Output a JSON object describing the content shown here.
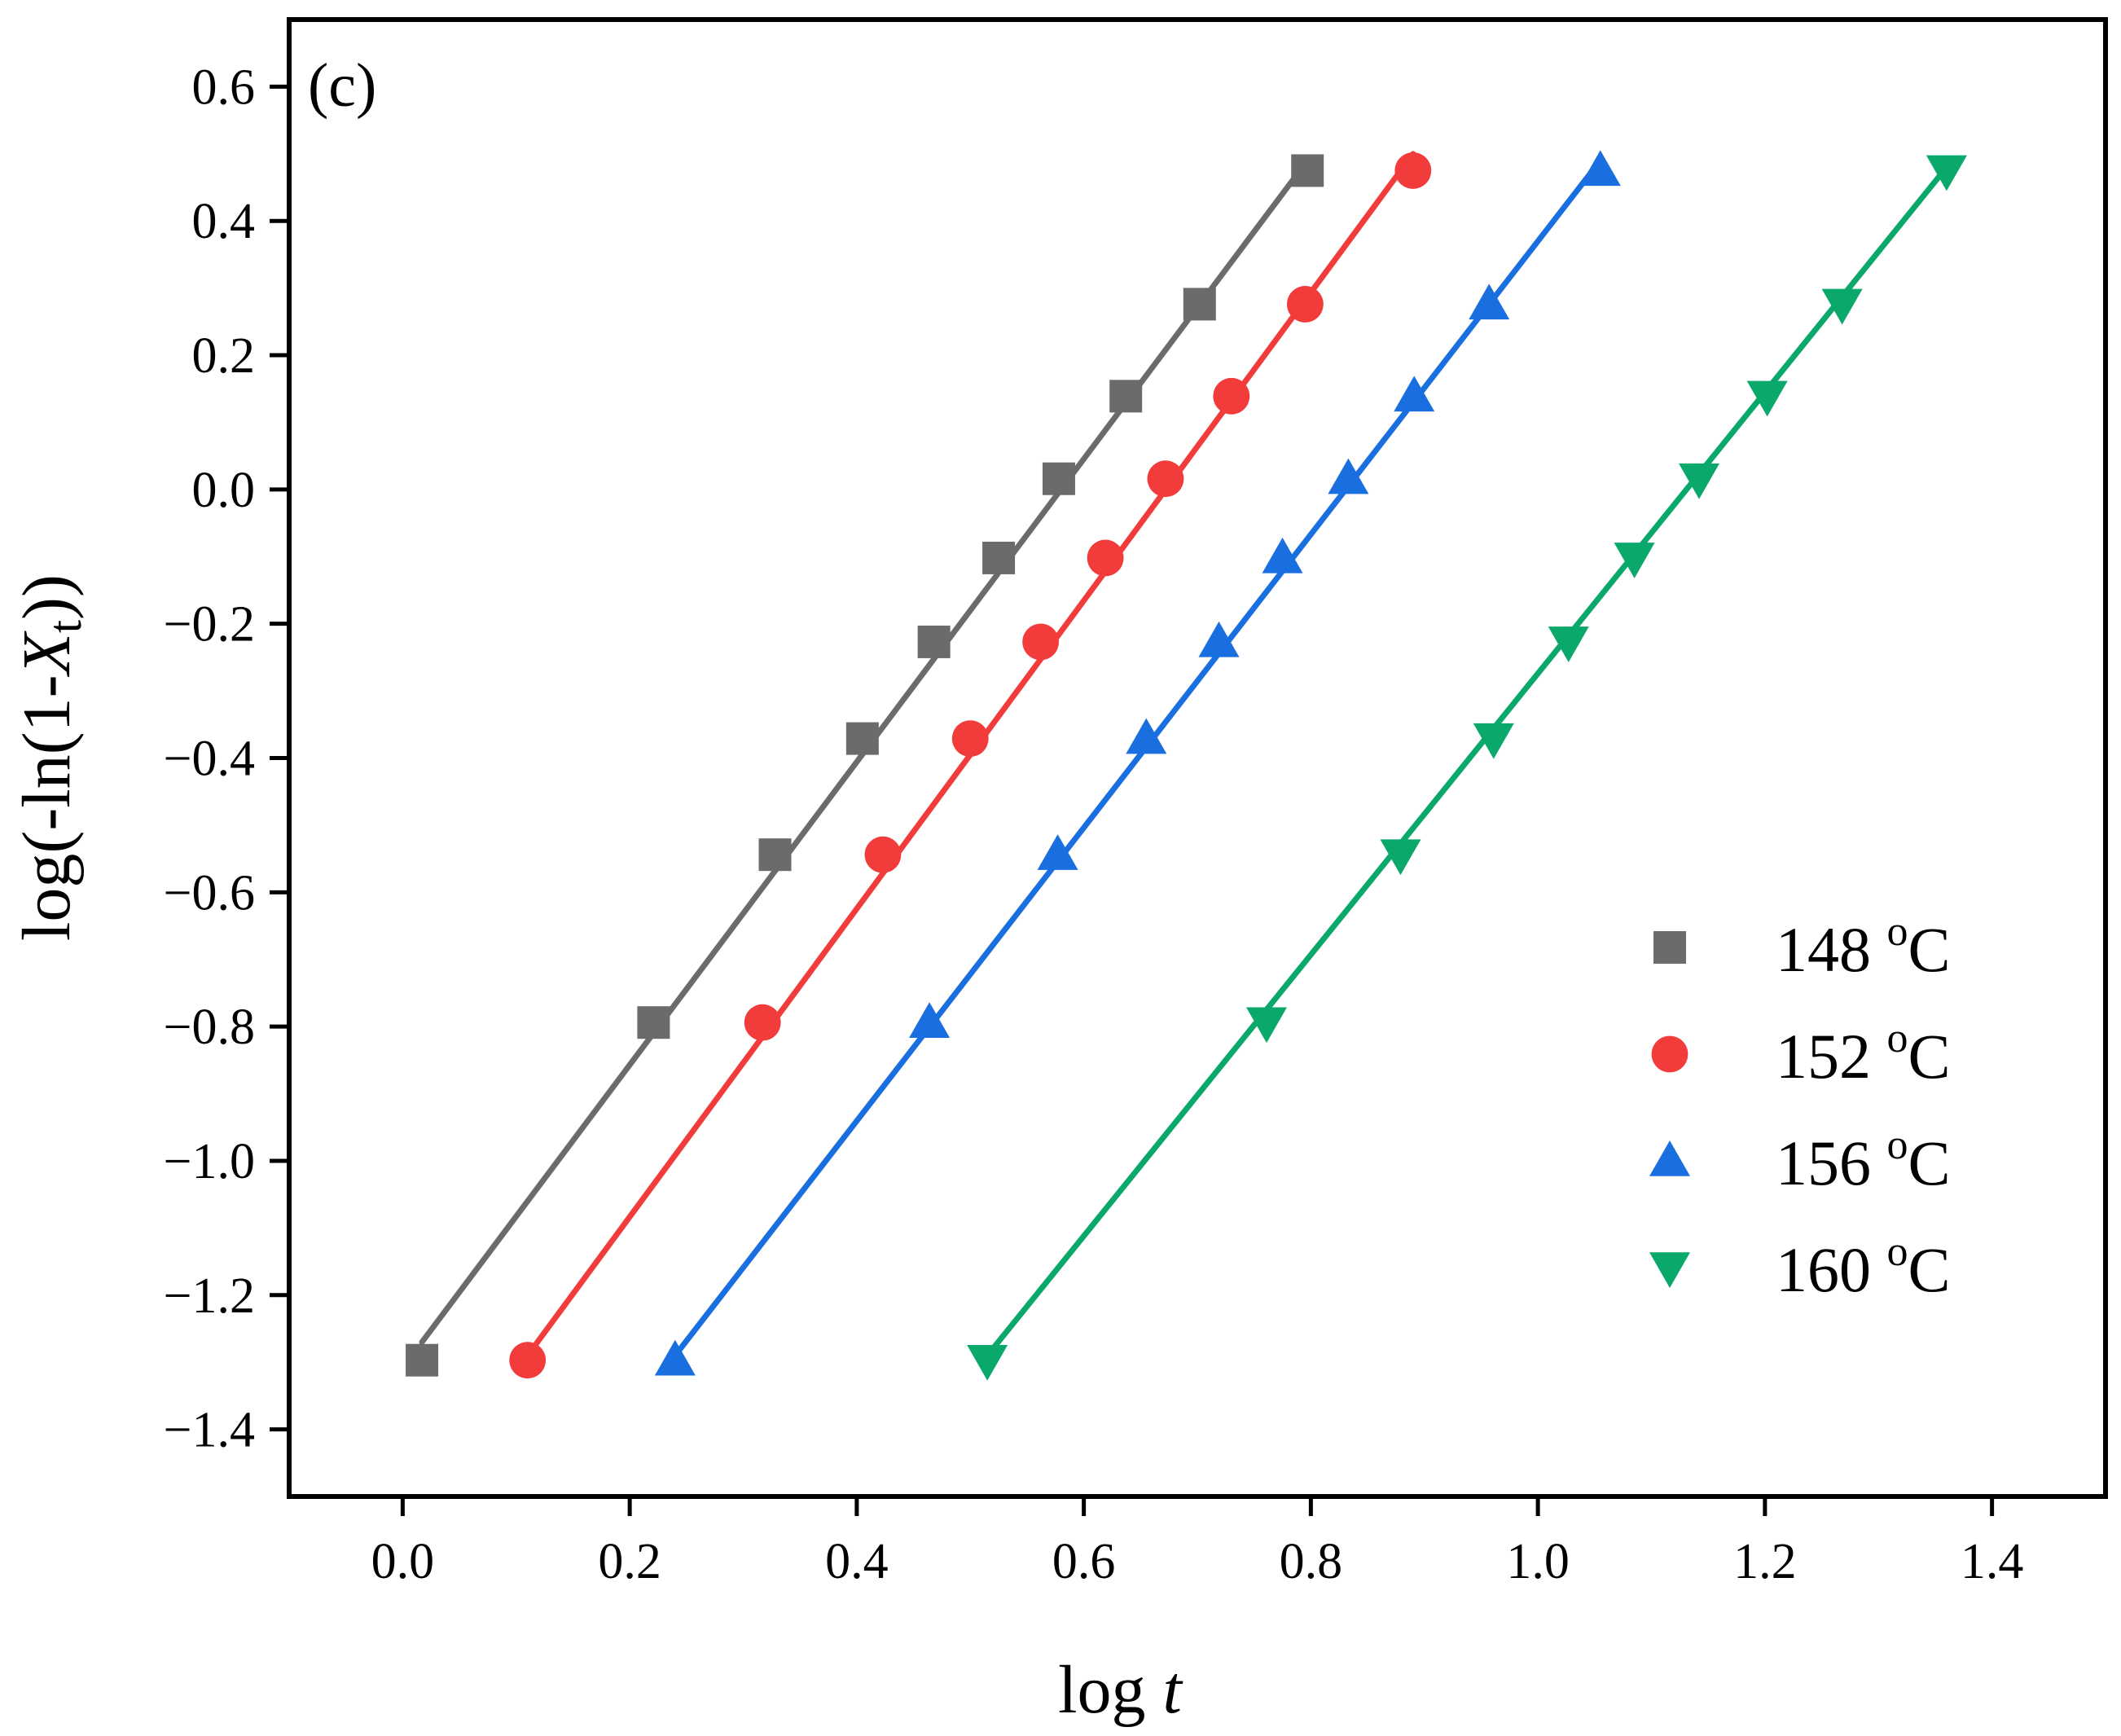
{
  "chart_data": {
    "type": "scatter",
    "panel_label": "(c)",
    "xlabel_prefix": "log ",
    "xlabel_var": "t",
    "ylabel_prefix": "log(-ln(1-",
    "ylabel_var": "X",
    "ylabel_sub": "t",
    "ylabel_suffix": "))",
    "xlim": [
      -0.1,
      1.5
    ],
    "ylim": [
      -1.5,
      0.7
    ],
    "x_ticks": [
      0.0,
      0.2,
      0.4,
      0.6,
      0.8,
      1.0,
      1.2,
      1.4
    ],
    "x_tick_labels": [
      "0.0",
      "0.2",
      "0.4",
      "0.6",
      "0.8",
      "1.0",
      "1.2",
      "1.4"
    ],
    "y_ticks": [
      0.6,
      0.4,
      0.2,
      0.0,
      -0.2,
      -0.4,
      -0.6,
      -0.8,
      -1.0,
      -1.2,
      -1.4
    ],
    "y_tick_labels": [
      "0.6",
      "0.4",
      "0.2",
      "0.0",
      "−0.2",
      "−0.4",
      "−0.6",
      "−0.8",
      "−1.0",
      "−1.2",
      "−1.4"
    ],
    "legend_position": "right",
    "series": [
      {
        "name": "148 °C",
        "legend_num": "148 ",
        "legend_sup": "o",
        "legend_unit": "C",
        "color": "#6b6b6b",
        "marker": "square",
        "x": [
          0.017,
          0.221,
          0.328,
          0.405,
          0.468,
          0.525,
          0.578,
          0.637,
          0.702,
          0.797
        ],
        "y": [
          -1.297,
          -0.794,
          -0.544,
          -0.371,
          -0.227,
          -0.102,
          0.016,
          0.139,
          0.276,
          0.475
        ],
        "fit": [
          [
            0.017,
            -1.27
          ],
          [
            0.797,
            0.49
          ]
        ]
      },
      {
        "name": "152 °C",
        "legend_num": "152 ",
        "legend_sup": "o",
        "legend_unit": "C",
        "color": "#f23b3b",
        "marker": "circle",
        "x": [
          0.11,
          0.317,
          0.423,
          0.5,
          0.562,
          0.619,
          0.672,
          0.73,
          0.795,
          0.89
        ],
        "y": [
          -1.297,
          -0.794,
          -0.544,
          -0.371,
          -0.227,
          -0.102,
          0.016,
          0.139,
          0.276,
          0.475
        ],
        "fit": [
          [
            0.11,
            -1.29
          ],
          [
            0.89,
            0.5
          ]
        ]
      },
      {
        "name": "156 °C",
        "legend_num": "156 ",
        "legend_sup": "o",
        "legend_unit": "C",
        "color": "#1a6fe0",
        "marker": "triangle-up",
        "x": [
          0.24,
          0.464,
          0.577,
          0.655,
          0.719,
          0.775,
          0.833,
          0.891,
          0.957,
          1.055
        ],
        "y": [
          -1.297,
          -0.794,
          -0.544,
          -0.371,
          -0.227,
          -0.102,
          0.016,
          0.139,
          0.276,
          0.475
        ],
        "fit": [
          [
            0.24,
            -1.29
          ],
          [
            1.055,
            0.49
          ]
        ]
      },
      {
        "name": "160 °C",
        "legend_num": "160 ",
        "legend_sup": "o",
        "legend_unit": "C",
        "color": "#0aa86a",
        "marker": "triangle-down",
        "x": [
          0.515,
          0.761,
          0.879,
          0.961,
          1.027,
          1.085,
          1.142,
          1.202,
          1.268,
          1.36
        ],
        "y": [
          -1.297,
          -0.794,
          -0.544,
          -0.371,
          -0.227,
          -0.102,
          0.016,
          0.139,
          0.276,
          0.475
        ],
        "fit": [
          [
            0.515,
            -1.29
          ],
          [
            1.36,
            0.48
          ]
        ]
      }
    ]
  }
}
